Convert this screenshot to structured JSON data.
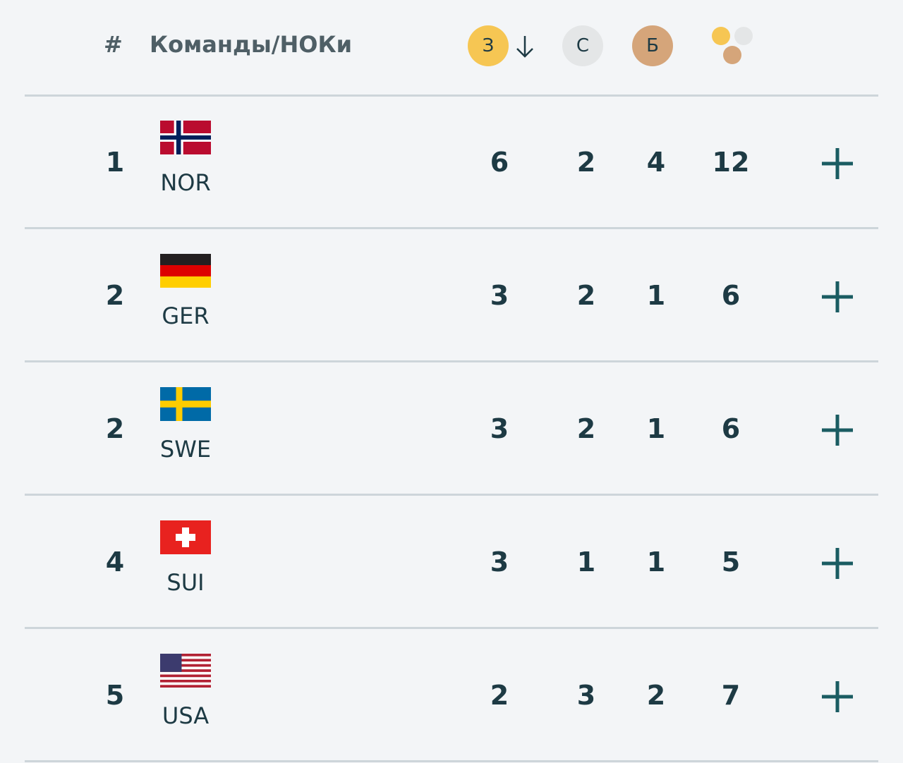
{
  "header": {
    "rank": "#",
    "team": "Команды/НОКи",
    "gold": "З",
    "silver": "С",
    "bronze": "Б"
  },
  "rows": [
    {
      "rank": 1,
      "code": "NOR",
      "gold": 6,
      "silver": 2,
      "bronze": 4,
      "total": 12
    },
    {
      "rank": 2,
      "code": "GER",
      "gold": 3,
      "silver": 2,
      "bronze": 1,
      "total": 6
    },
    {
      "rank": 2,
      "code": "SWE",
      "gold": 3,
      "silver": 2,
      "bronze": 1,
      "total": 6
    },
    {
      "rank": 4,
      "code": "SUI",
      "gold": 3,
      "silver": 1,
      "bronze": 1,
      "total": 5
    },
    {
      "rank": 5,
      "code": "USA",
      "gold": 2,
      "silver": 3,
      "bronze": 2,
      "total": 7
    }
  ]
}
